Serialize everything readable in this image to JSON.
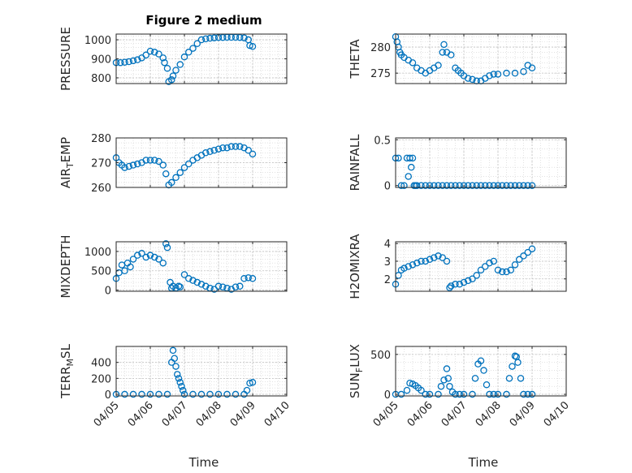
{
  "figure_title": "Figure 2 medium",
  "x_axis_label": "Time",
  "marker_color": "#0072BD",
  "chart_data": [
    {
      "type": "scatter",
      "ylabel_main": "PRESSURE",
      "ylabel_sub": "",
      "ylabel_tail": "",
      "ylim": [
        770,
        1030
      ],
      "yticks": [
        800,
        900,
        1000
      ],
      "xlim": [
        "04/05",
        "04/10"
      ],
      "xticks": [
        "04/05",
        "04/06",
        "04/07",
        "04/08",
        "04/09",
        "04/10"
      ],
      "x": [
        "04/05 00:00",
        "04/05 03:00",
        "04/05 06:00",
        "04/05 09:00",
        "04/05 12:00",
        "04/05 15:00",
        "04/05 18:00",
        "04/05 21:00",
        "04/06 00:00",
        "04/06 03:00",
        "04/06 06:00",
        "04/06 09:00",
        "04/06 10:00",
        "04/06 12:00",
        "04/06 13:00",
        "04/06 15:00",
        "04/06 16:00",
        "04/06 18:00",
        "04/06 21:00",
        "04/07 00:00",
        "04/07 03:00",
        "04/07 06:00",
        "04/07 09:00",
        "04/07 12:00",
        "04/07 15:00",
        "04/07 18:00",
        "04/07 21:00",
        "04/08 00:00",
        "04/08 03:00",
        "04/08 06:00",
        "04/08 09:00",
        "04/08 12:00",
        "04/08 15:00",
        "04/08 18:00",
        "04/08 21:00",
        "04/08 22:00",
        "04/09 00:00"
      ],
      "y": [
        880,
        880,
        882,
        885,
        890,
        895,
        905,
        920,
        940,
        935,
        925,
        905,
        880,
        850,
        780,
        790,
        810,
        840,
        870,
        910,
        935,
        955,
        980,
        1000,
        1005,
        1008,
        1010,
        1012,
        1012,
        1013,
        1013,
        1013,
        1012,
        1010,
        1000,
        970,
        965
      ]
    },
    {
      "type": "scatter",
      "ylabel_main": "THETA",
      "ylabel_sub": "",
      "ylabel_tail": "",
      "ylim": [
        273,
        282.5
      ],
      "yticks": [
        275,
        280
      ],
      "xlim": [
        "04/05",
        "04/10"
      ],
      "xticks": [
        "04/05",
        "04/06",
        "04/07",
        "04/08",
        "04/09",
        "04/10"
      ],
      "x": [
        "04/05 00:00",
        "04/05 01:00",
        "04/05 02:00",
        "04/05 03:00",
        "04/05 04:00",
        "04/05 06:00",
        "04/05 09:00",
        "04/05 12:00",
        "04/05 15:00",
        "04/05 18:00",
        "04/05 21:00",
        "04/06 00:00",
        "04/06 03:00",
        "04/06 06:00",
        "04/06 09:00",
        "04/06 10:00",
        "04/06 12:00",
        "04/06 15:00",
        "04/06 18:00",
        "04/06 20:00",
        "04/06 22:00",
        "04/07 00:00",
        "04/07 03:00",
        "04/07 06:00",
        "04/07 09:00",
        "04/07 12:00",
        "04/07 15:00",
        "04/07 18:00",
        "04/07 21:00",
        "04/08 00:00",
        "04/08 06:00",
        "04/08 12:00",
        "04/08 18:00",
        "04/08 21:00",
        "04/09 00:00"
      ],
      "y": [
        282,
        281,
        280,
        279,
        278.5,
        278,
        277.5,
        277,
        276,
        275.5,
        275,
        275.5,
        276,
        276.5,
        279,
        280.5,
        279,
        278.5,
        276,
        275.5,
        275,
        274.5,
        274,
        273.8,
        273.5,
        273.5,
        274,
        274.5,
        274.8,
        274.8,
        275,
        275,
        275.3,
        276.5,
        276
      ]
    },
    {
      "type": "scatter",
      "ylabel_main": "AIR",
      "ylabel_sub": "T",
      "ylabel_tail": "EMP",
      "ylim": [
        260,
        280
      ],
      "yticks": [
        260,
        270,
        280
      ],
      "xlim": [
        "04/05",
        "04/10"
      ],
      "xticks": [
        "04/05",
        "04/06",
        "04/07",
        "04/08",
        "04/09",
        "04/10"
      ],
      "x": [
        "04/05 00:00",
        "04/05 02:00",
        "04/05 04:00",
        "04/05 06:00",
        "04/05 09:00",
        "04/05 12:00",
        "04/05 15:00",
        "04/05 18:00",
        "04/05 21:00",
        "04/06 00:00",
        "04/06 03:00",
        "04/06 06:00",
        "04/06 09:00",
        "04/06 11:00",
        "04/06 13:00",
        "04/06 15:00",
        "04/06 18:00",
        "04/06 21:00",
        "04/07 00:00",
        "04/07 03:00",
        "04/07 06:00",
        "04/07 09:00",
        "04/07 12:00",
        "04/07 15:00",
        "04/07 18:00",
        "04/07 21:00",
        "04/08 00:00",
        "04/08 03:00",
        "04/08 06:00",
        "04/08 09:00",
        "04/08 12:00",
        "04/08 15:00",
        "04/08 18:00",
        "04/08 21:00",
        "04/09 00:00"
      ],
      "y": [
        272,
        270,
        269,
        268,
        268.5,
        269,
        269.5,
        270,
        271,
        271,
        271,
        270.5,
        269,
        265.5,
        261,
        262,
        264,
        266,
        268,
        269.5,
        271,
        272,
        273,
        274,
        274.5,
        275,
        275.5,
        276,
        276,
        276.5,
        276.5,
        276.5,
        276,
        275,
        273.5
      ]
    },
    {
      "type": "scatter",
      "ylabel_main": "RAINFALL",
      "ylabel_sub": "",
      "ylabel_tail": "",
      "ylim": [
        -0.02,
        0.52
      ],
      "yticks": [
        0,
        0.5
      ],
      "xlim": [
        "04/05",
        "04/10"
      ],
      "xticks": [
        "04/05",
        "04/06",
        "04/07",
        "04/08",
        "04/09",
        "04/10"
      ],
      "x": [
        "04/05 00:00",
        "04/05 02:00",
        "04/05 04:00",
        "04/05 06:00",
        "04/05 08:00",
        "04/05 09:00",
        "04/05 10:00",
        "04/05 11:00",
        "04/05 12:00",
        "04/05 13:00",
        "04/05 14:00",
        "04/05 15:00",
        "04/05 18:00",
        "04/05 21:00",
        "04/06 00:00",
        "04/06 03:00",
        "04/06 06:00",
        "04/06 09:00",
        "04/06 12:00",
        "04/06 15:00",
        "04/06 18:00",
        "04/06 21:00",
        "04/07 00:00",
        "04/07 03:00",
        "04/07 06:00",
        "04/07 09:00",
        "04/07 12:00",
        "04/07 15:00",
        "04/07 18:00",
        "04/07 21:00",
        "04/08 00:00",
        "04/08 03:00",
        "04/08 06:00",
        "04/08 09:00",
        "04/08 12:00",
        "04/08 15:00",
        "04/08 18:00",
        "04/08 21:00",
        "04/09 00:00"
      ],
      "y": [
        0.3,
        0.3,
        0,
        0,
        0.3,
        0.1,
        0.3,
        0.2,
        0.3,
        0,
        0,
        0,
        0,
        0,
        0,
        0,
        0,
        0,
        0,
        0,
        0,
        0,
        0,
        0,
        0,
        0,
        0,
        0,
        0,
        0,
        0,
        0,
        0,
        0,
        0,
        0,
        0,
        0,
        0
      ]
    },
    {
      "type": "scatter",
      "ylabel_main": "MIXDEPTH",
      "ylabel_sub": "",
      "ylabel_tail": "",
      "ylim": [
        -30,
        1250
      ],
      "yticks": [
        0,
        500,
        1000
      ],
      "xlim": [
        "04/05",
        "04/10"
      ],
      "xticks": [
        "04/05",
        "04/06",
        "04/07",
        "04/08",
        "04/09",
        "04/10"
      ],
      "x": [
        "04/05 00:00",
        "04/05 02:00",
        "04/05 04:00",
        "04/05 06:00",
        "04/05 08:00",
        "04/05 10:00",
        "04/05 12:00",
        "04/05 15:00",
        "04/05 18:00",
        "04/05 21:00",
        "04/06 00:00",
        "04/06 03:00",
        "04/06 06:00",
        "04/06 09:00",
        "04/06 11:00",
        "04/06 12:00",
        "04/06 14:00",
        "04/06 15:00",
        "04/06 16:00",
        "04/06 18:00",
        "04/06 20:00",
        "04/06 21:00",
        "04/07 00:00",
        "04/07 03:00",
        "04/07 06:00",
        "04/07 09:00",
        "04/07 12:00",
        "04/07 15:00",
        "04/07 18:00",
        "04/07 21:00",
        "04/08 00:00",
        "04/08 03:00",
        "04/08 06:00",
        "04/08 09:00",
        "04/08 12:00",
        "04/08 15:00",
        "04/08 18:00",
        "04/08 21:00",
        "04/09 00:00"
      ],
      "y": [
        300,
        450,
        650,
        500,
        700,
        600,
        800,
        900,
        950,
        850,
        900,
        850,
        800,
        700,
        1200,
        1100,
        200,
        50,
        100,
        50,
        100,
        80,
        400,
        300,
        250,
        200,
        150,
        100,
        50,
        20,
        100,
        80,
        50,
        20,
        80,
        100,
        300,
        320,
        300
      ]
    },
    {
      "type": "scatter",
      "ylabel_main": "H2OMIXRA",
      "ylabel_sub": "",
      "ylabel_tail": "",
      "ylim": [
        1.3,
        4.1
      ],
      "yticks": [
        2,
        3,
        4
      ],
      "xlim": [
        "04/05",
        "04/10"
      ],
      "xticks": [
        "04/05",
        "04/06",
        "04/07",
        "04/08",
        "04/09",
        "04/10"
      ],
      "x": [
        "04/05 00:00",
        "04/05 02:00",
        "04/05 04:00",
        "04/05 06:00",
        "04/05 09:00",
        "04/05 12:00",
        "04/05 15:00",
        "04/05 18:00",
        "04/05 21:00",
        "04/06 00:00",
        "04/06 03:00",
        "04/06 06:00",
        "04/06 09:00",
        "04/06 12:00",
        "04/06 14:00",
        "04/06 15:00",
        "04/06 18:00",
        "04/06 21:00",
        "04/07 00:00",
        "04/07 03:00",
        "04/07 06:00",
        "04/07 09:00",
        "04/07 12:00",
        "04/07 15:00",
        "04/07 18:00",
        "04/07 21:00",
        "04/08 00:00",
        "04/08 03:00",
        "04/08 06:00",
        "04/08 09:00",
        "04/08 12:00",
        "04/08 15:00",
        "04/08 18:00",
        "04/08 21:00",
        "04/09 00:00"
      ],
      "y": [
        1.7,
        2.2,
        2.5,
        2.6,
        2.7,
        2.8,
        2.9,
        3.0,
        3.0,
        3.1,
        3.2,
        3.3,
        3.2,
        3.0,
        1.5,
        1.6,
        1.7,
        1.7,
        1.8,
        1.9,
        2.0,
        2.2,
        2.5,
        2.7,
        2.9,
        3.0,
        2.5,
        2.4,
        2.4,
        2.5,
        2.8,
        3.1,
        3.3,
        3.5,
        3.7
      ]
    },
    {
      "type": "scatter",
      "ylabel_main": "TERR",
      "ylabel_sub": "M",
      "ylabel_tail": "SL",
      "ylim": [
        -20,
        600
      ],
      "yticks": [
        0,
        200,
        400
      ],
      "xlim": [
        "04/05",
        "04/10"
      ],
      "xticks": [
        "04/05",
        "04/06",
        "04/07",
        "04/08",
        "04/09",
        "04/10"
      ],
      "x": [
        "04/05 00:00",
        "04/05 06:00",
        "04/05 12:00",
        "04/05 18:00",
        "04/06 00:00",
        "04/06 06:00",
        "04/06 12:00",
        "04/06 15:00",
        "04/06 16:00",
        "04/06 17:00",
        "04/06 18:00",
        "04/06 19:00",
        "04/06 20:00",
        "04/06 21:00",
        "04/06 22:00",
        "04/06 23:00",
        "04/07 00:00",
        "04/07 06:00",
        "04/07 12:00",
        "04/07 18:00",
        "04/08 00:00",
        "04/08 06:00",
        "04/08 12:00",
        "04/08 18:00",
        "04/08 20:00",
        "04/08 22:00",
        "04/09 00:00"
      ],
      "y": [
        0,
        0,
        0,
        0,
        0,
        0,
        0,
        400,
        550,
        450,
        350,
        250,
        200,
        150,
        100,
        50,
        0,
        0,
        0,
        0,
        0,
        0,
        0,
        0,
        50,
        140,
        150
      ]
    },
    {
      "type": "scatter",
      "ylabel_main": "SUN",
      "ylabel_sub": "F",
      "ylabel_tail": "LUX",
      "ylim": [
        -20,
        600
      ],
      "yticks": [
        0,
        500
      ],
      "xlim": [
        "04/05",
        "04/10"
      ],
      "xticks": [
        "04/05",
        "04/06",
        "04/07",
        "04/08",
        "04/09",
        "04/10"
      ],
      "x": [
        "04/05 00:00",
        "04/05 04:00",
        "04/05 08:00",
        "04/05 10:00",
        "04/05 12:00",
        "04/05 14:00",
        "04/05 16:00",
        "04/05 18:00",
        "04/05 21:00",
        "04/06 00:00",
        "04/06 06:00",
        "04/06 08:00",
        "04/06 10:00",
        "04/06 12:00",
        "04/06 13:00",
        "04/06 14:00",
        "04/06 16:00",
        "04/06 18:00",
        "04/06 21:00",
        "04/07 00:00",
        "04/07 06:00",
        "04/07 08:00",
        "04/07 10:00",
        "04/07 12:00",
        "04/07 14:00",
        "04/07 16:00",
        "04/07 18:00",
        "04/07 21:00",
        "04/08 00:00",
        "04/08 06:00",
        "04/08 08:00",
        "04/08 10:00",
        "04/08 12:00",
        "04/08 13:00",
        "04/08 14:00",
        "04/08 16:00",
        "04/08 18:00",
        "04/08 21:00",
        "04/09 00:00"
      ],
      "y": [
        0,
        0,
        50,
        140,
        130,
        110,
        80,
        50,
        0,
        0,
        0,
        100,
        180,
        320,
        200,
        100,
        30,
        0,
        0,
        0,
        0,
        200,
        380,
        420,
        300,
        120,
        0,
        0,
        0,
        0,
        200,
        350,
        480,
        470,
        400,
        200,
        0,
        0,
        0
      ]
    }
  ]
}
